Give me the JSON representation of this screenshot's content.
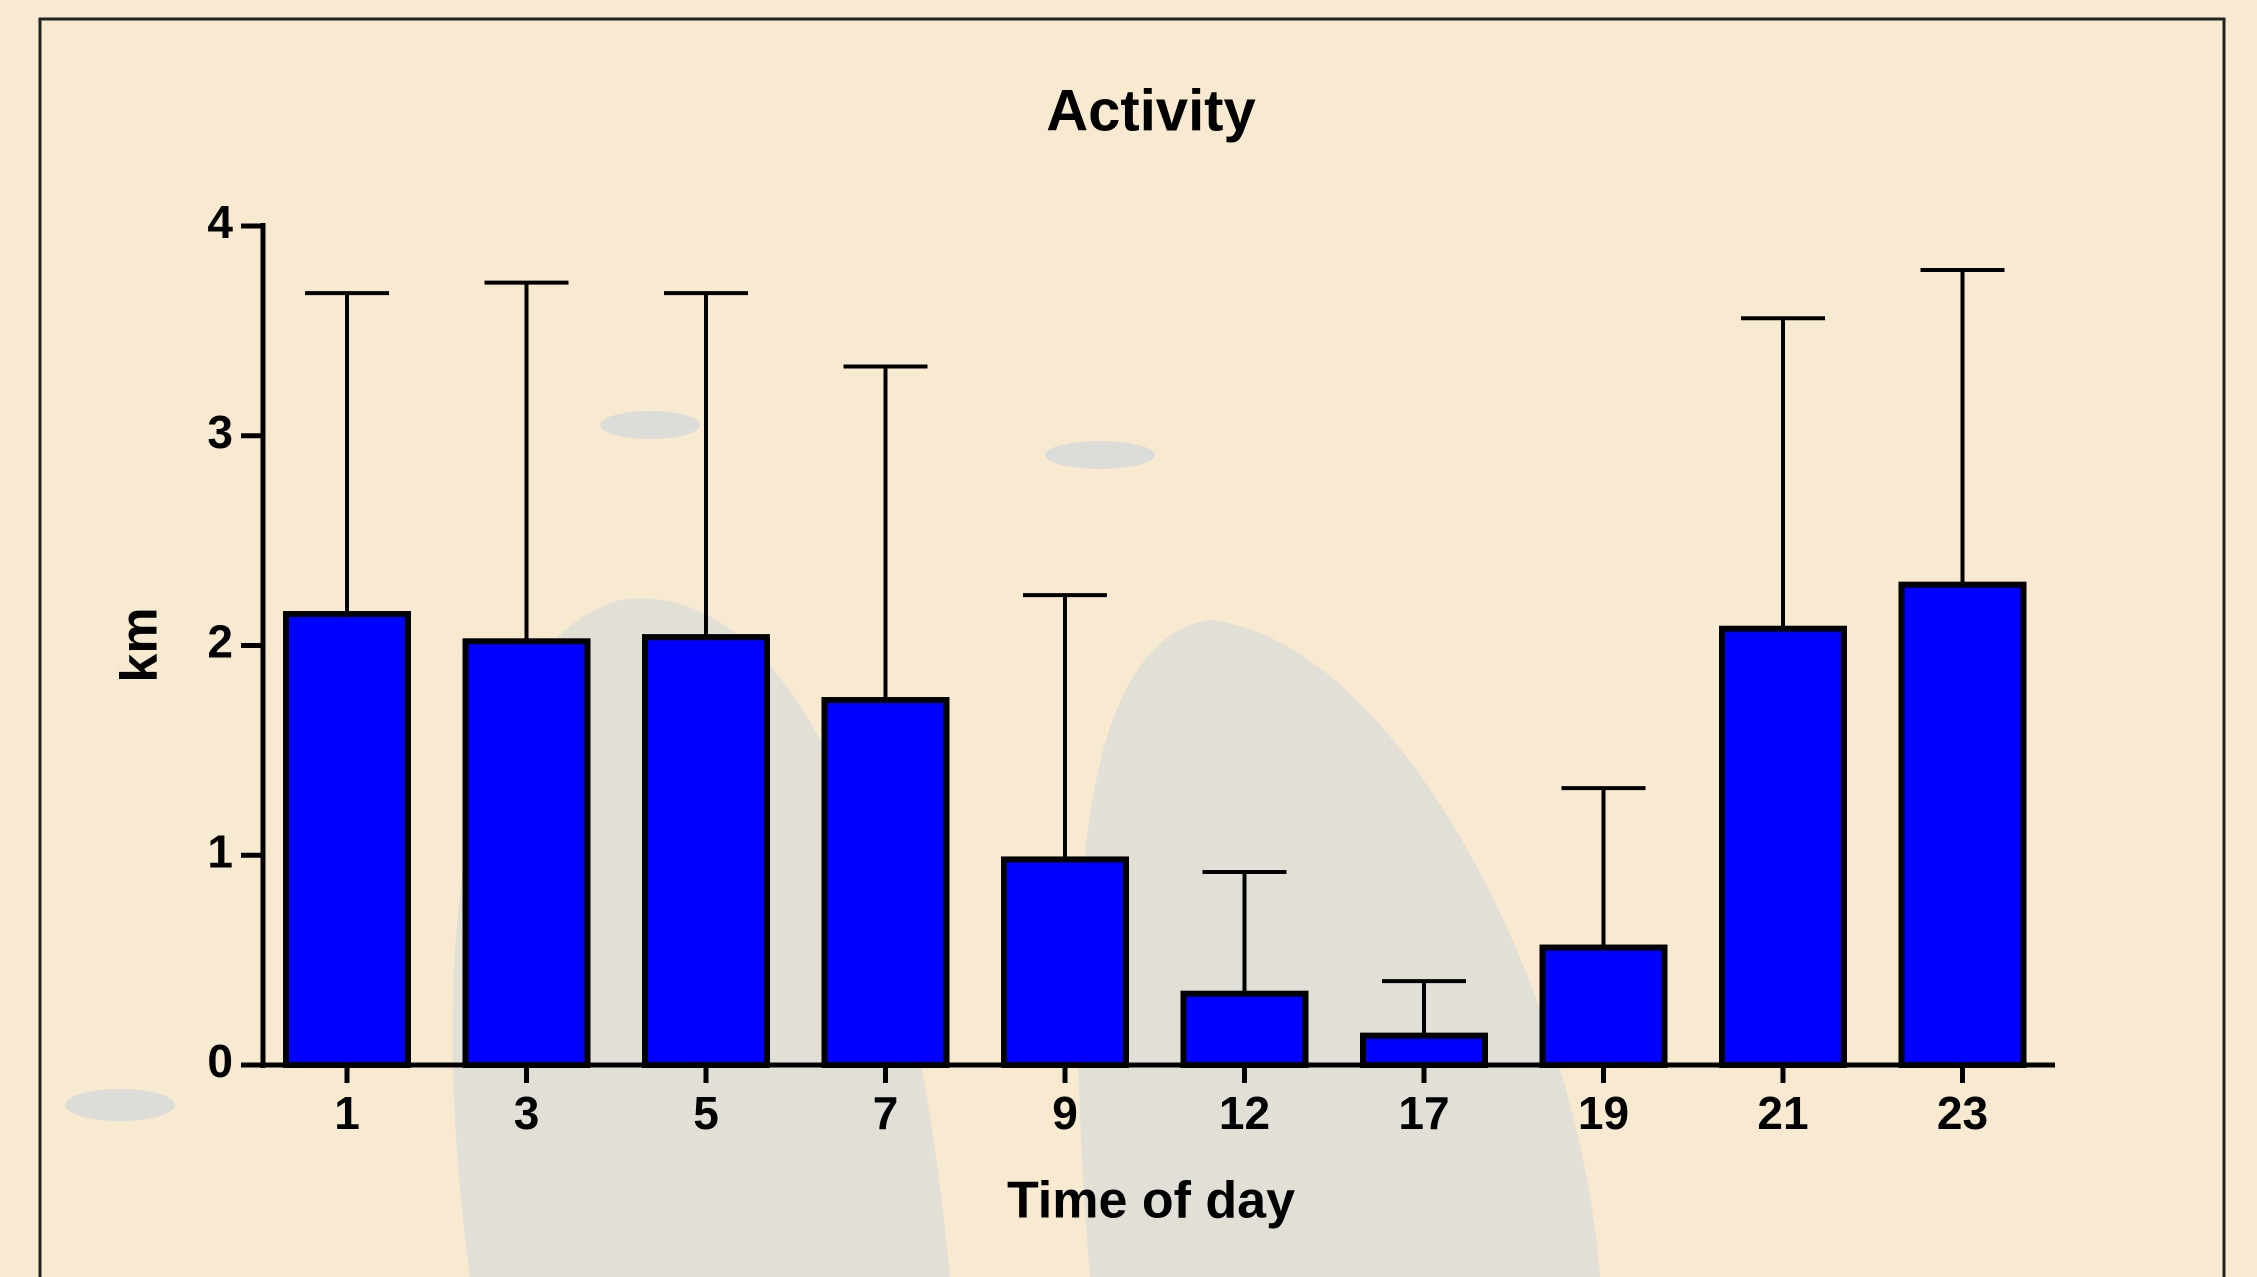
{
  "chart_data": {
    "type": "bar",
    "title": "Activity",
    "x_label": "Time of day",
    "y_label": "km",
    "categories": [
      "1",
      "3",
      "5",
      "7",
      "9",
      "12",
      "17",
      "19",
      "21",
      "23"
    ],
    "values": [
      2.15,
      2.02,
      2.04,
      1.74,
      0.98,
      0.34,
      0.14,
      0.56,
      2.08,
      2.29
    ],
    "errors": [
      1.53,
      1.71,
      1.64,
      1.59,
      1.26,
      0.58,
      0.26,
      0.76,
      1.48,
      1.5
    ],
    "color": "#0000ff",
    "ylim": [
      0,
      4
    ],
    "yticks": [
      0,
      1,
      2,
      3,
      4
    ]
  }
}
